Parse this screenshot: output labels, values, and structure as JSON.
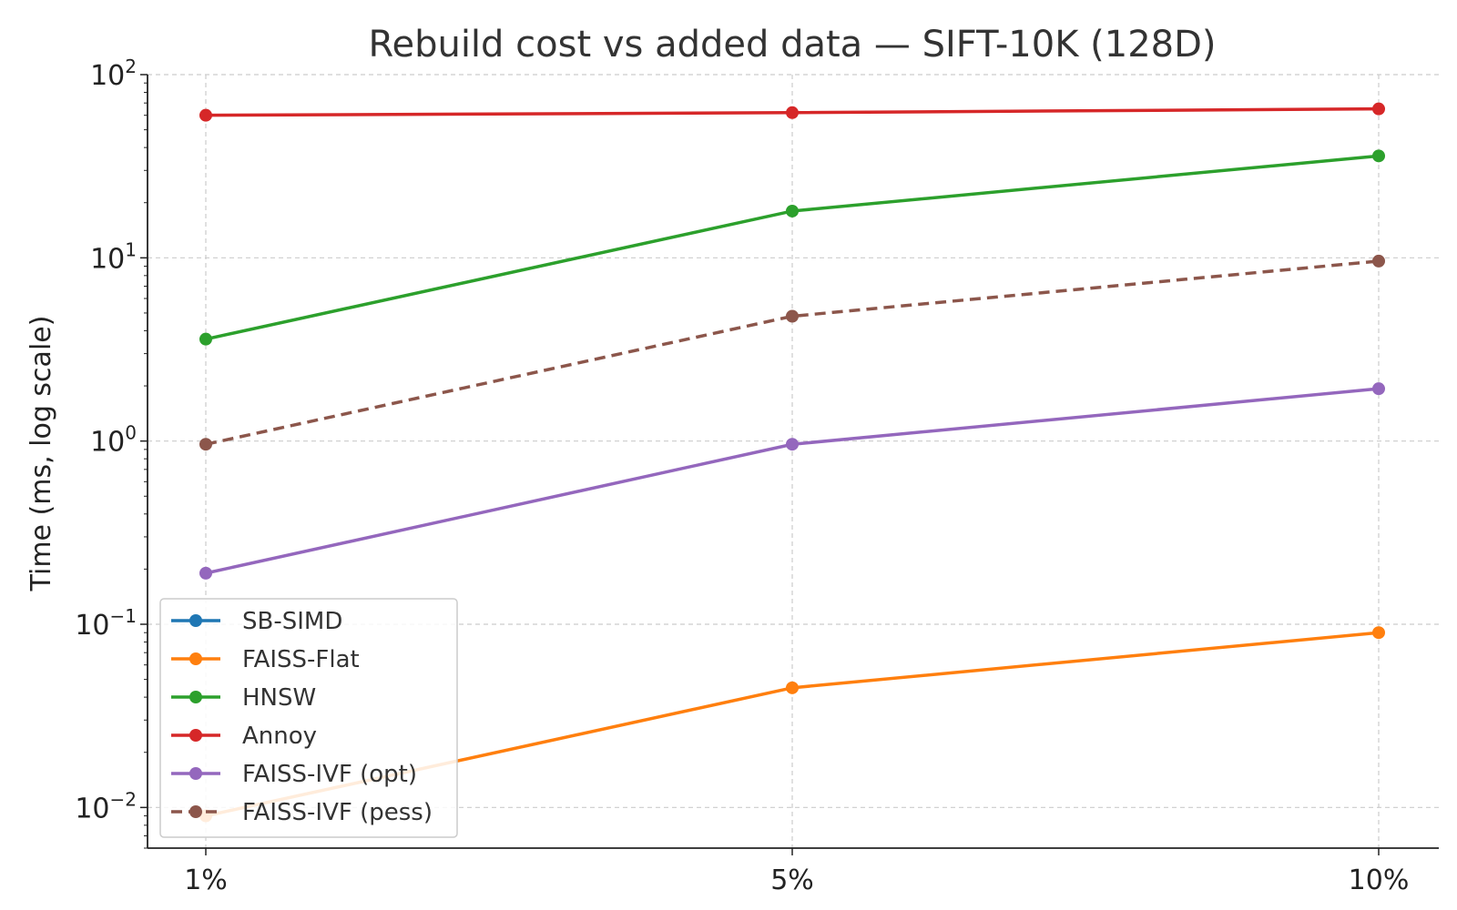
{
  "chart_data": {
    "type": "line",
    "title": "Rebuild cost vs added data — SIFT-10K (128D)",
    "xlabel": "",
    "ylabel": "Time (ms, log scale)",
    "categories": [
      "1%",
      "5%",
      "10%"
    ],
    "yscale": "log",
    "ylim": [
      0.006,
      100
    ],
    "yticks": [
      {
        "value": 0.01,
        "base": "10",
        "exp": "−2"
      },
      {
        "value": 0.1,
        "base": "10",
        "exp": "−1"
      },
      {
        "value": 1,
        "base": "10",
        "exp": "0"
      },
      {
        "value": 10,
        "base": "10",
        "exp": "1"
      },
      {
        "value": 100,
        "base": "10",
        "exp": "2"
      }
    ],
    "grid": true,
    "legend_position": "lower-left",
    "series": [
      {
        "name": "SB-SIMD",
        "color": "#1f77b4",
        "dashed": false,
        "values": [
          null,
          null,
          null
        ]
      },
      {
        "name": "FAISS-Flat",
        "color": "#ff7f0e",
        "dashed": false,
        "values": [
          0.009,
          0.045,
          0.09
        ]
      },
      {
        "name": "HNSW",
        "color": "#2ca02c",
        "dashed": false,
        "values": [
          3.6,
          18,
          36
        ]
      },
      {
        "name": "Annoy",
        "color": "#d62728",
        "dashed": false,
        "values": [
          60,
          62,
          65
        ]
      },
      {
        "name": "FAISS-IVF (opt)",
        "color": "#9467bd",
        "dashed": false,
        "values": [
          0.19,
          0.96,
          1.93
        ]
      },
      {
        "name": "FAISS-IVF (pess)",
        "color": "#8c564b",
        "dashed": true,
        "values": [
          0.96,
          4.8,
          9.6
        ]
      }
    ]
  }
}
